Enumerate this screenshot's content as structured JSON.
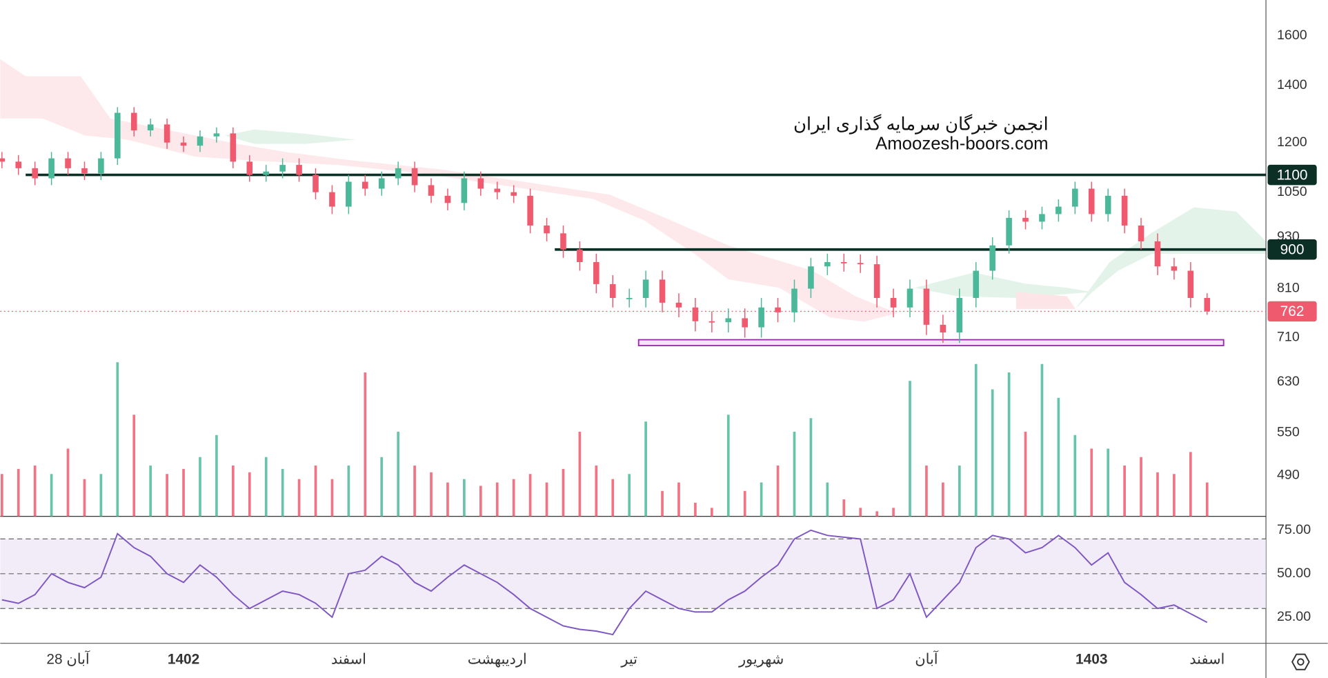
{
  "chart_data": {
    "type": "candlestick",
    "annotations": [
      "انجمن خبرگان سرمایه گذاری ایران",
      "Amoozesh-boors.com"
    ],
    "log_scale": true,
    "ylim": [
      439,
      1761
    ],
    "yticks": [
      490,
      550,
      630,
      710,
      810,
      930,
      1050,
      1200,
      1400,
      1600
    ],
    "levels": [
      1100,
      900
    ],
    "last_price": 762,
    "support_zone": [
      695,
      706
    ],
    "up_color": "#4cb89a",
    "down_color": "#ef5a6f",
    "zone_color": "#9c27b0",
    "level_color": "#0b2e25",
    "categories": [
      null,
      null,
      null,
      null,
      "28 آبان",
      null,
      null,
      null,
      null,
      null,
      null,
      "1402",
      null,
      null,
      null,
      null,
      null,
      null,
      null,
      null,
      null,
      "اسفند",
      null,
      null,
      null,
      null,
      null,
      null,
      null,
      null,
      "اردیبهشت",
      null,
      null,
      null,
      null,
      null,
      null,
      null,
      "تیر",
      null,
      null,
      null,
      null,
      null,
      null,
      null,
      "شهریور",
      null,
      null,
      null,
      null,
      null,
      null,
      null,
      null,
      null,
      "آبان",
      null,
      null,
      null,
      null,
      null,
      null,
      null,
      null,
      null,
      "1403",
      null,
      null,
      null,
      null,
      null,
      null,
      "اسفند"
    ],
    "open": [
      1150,
      1140,
      1120,
      1090,
      1150,
      1120,
      1105,
      1150,
      1300,
      1240,
      1260,
      1200,
      1190,
      1220,
      1230,
      1140,
      1100,
      1110,
      1130,
      1100,
      1050,
      1010,
      1080,
      1060,
      1090,
      1120,
      1070,
      1040,
      1020,
      1090,
      1060,
      1050,
      1040,
      960,
      940,
      900,
      870,
      820,
      790,
      790,
      830,
      780,
      770,
      742,
      740,
      748,
      730,
      770,
      760,
      810,
      860,
      870,
      868,
      865,
      790,
      770,
      810,
      735,
      720,
      790,
      850,
      910,
      980,
      970,
      990,
      1010,
      1060,
      990,
      1040,
      960,
      920,
      860,
      850,
      790
    ],
    "high": [
      1170,
      1160,
      1140,
      1170,
      1170,
      1140,
      1170,
      1320,
      1320,
      1280,
      1280,
      1220,
      1240,
      1250,
      1250,
      1160,
      1130,
      1150,
      1150,
      1120,
      1070,
      1100,
      1100,
      1110,
      1140,
      1140,
      1090,
      1060,
      1110,
      1110,
      1080,
      1070,
      1060,
      980,
      960,
      920,
      890,
      840,
      810,
      850,
      850,
      800,
      790,
      762,
      768,
      768,
      790,
      790,
      830,
      880,
      890,
      890,
      888,
      885,
      810,
      830,
      830,
      755,
      810,
      870,
      930,
      1000,
      1000,
      1010,
      1030,
      1080,
      1080,
      1060,
      1060,
      980,
      940,
      880,
      870,
      800
    ],
    "low": [
      1120,
      1100,
      1070,
      1070,
      1100,
      1085,
      1085,
      1130,
      1220,
      1220,
      1180,
      1170,
      1170,
      1200,
      1120,
      1080,
      1080,
      1090,
      1080,
      1030,
      990,
      990,
      1040,
      1040,
      1070,
      1050,
      1020,
      1000,
      1000,
      1040,
      1030,
      1020,
      940,
      920,
      880,
      850,
      800,
      770,
      770,
      770,
      760,
      750,
      722,
      720,
      720,
      710,
      710,
      740,
      740,
      790,
      840,
      848,
      845,
      770,
      750,
      750,
      715,
      700,
      700,
      770,
      830,
      890,
      950,
      950,
      970,
      990,
      970,
      970,
      940,
      900,
      840,
      830,
      770,
      755
    ],
    "close": [
      1140,
      1120,
      1090,
      1150,
      1120,
      1105,
      1150,
      1300,
      1240,
      1260,
      1200,
      1190,
      1220,
      1230,
      1140,
      1100,
      1110,
      1130,
      1100,
      1050,
      1010,
      1080,
      1060,
      1090,
      1120,
      1070,
      1040,
      1020,
      1090,
      1060,
      1050,
      1040,
      960,
      940,
      900,
      870,
      820,
      790,
      790,
      830,
      780,
      770,
      742,
      740,
      748,
      730,
      770,
      760,
      810,
      860,
      870,
      868,
      865,
      790,
      770,
      810,
      735,
      720,
      790,
      850,
      910,
      980,
      970,
      990,
      1010,
      1060,
      990,
      1040,
      960,
      920,
      860,
      850,
      790,
      762
    ],
    "volume": [
      25,
      28,
      30,
      25,
      40,
      22,
      25,
      91,
      60,
      30,
      25,
      28,
      35,
      48,
      30,
      26,
      35,
      28,
      22,
      30,
      22,
      30,
      85,
      35,
      50,
      30,
      26,
      20,
      22,
      18,
      20,
      22,
      25,
      20,
      28,
      50,
      30,
      22,
      25,
      56,
      15,
      20,
      8,
      5,
      60,
      15,
      20,
      30,
      50,
      58,
      20,
      10,
      5,
      3,
      5,
      80,
      30,
      20,
      30,
      90,
      75,
      85,
      50,
      90,
      70,
      48,
      40,
      40,
      30,
      35,
      26,
      25,
      38,
      20
    ],
    "vlim": [
      0,
      100
    ],
    "rsi": {
      "color": "#7e57c2",
      "ylim": [
        10,
        83
      ],
      "yticks": [
        {
          "value": 25,
          "label": "25.00"
        },
        {
          "value": 50,
          "label": "50.00"
        },
        {
          "value": 75,
          "label": "75.00"
        }
      ],
      "bands": [
        30,
        50,
        70
      ],
      "values": [
        35,
        33,
        38,
        50,
        45,
        42,
        48,
        73,
        65,
        60,
        50,
        45,
        55,
        48,
        38,
        30,
        35,
        40,
        38,
        33,
        25,
        50,
        52,
        60,
        55,
        45,
        40,
        48,
        55,
        50,
        45,
        38,
        30,
        25,
        20,
        18,
        17,
        15,
        30,
        40,
        35,
        30,
        28,
        28,
        35,
        40,
        48,
        55,
        70,
        75,
        72,
        71,
        70,
        30,
        35,
        50,
        25,
        35,
        45,
        65,
        72,
        70,
        62,
        65,
        72,
        65,
        55,
        62,
        45,
        38,
        30,
        32,
        27,
        22
      ]
    }
  }
}
